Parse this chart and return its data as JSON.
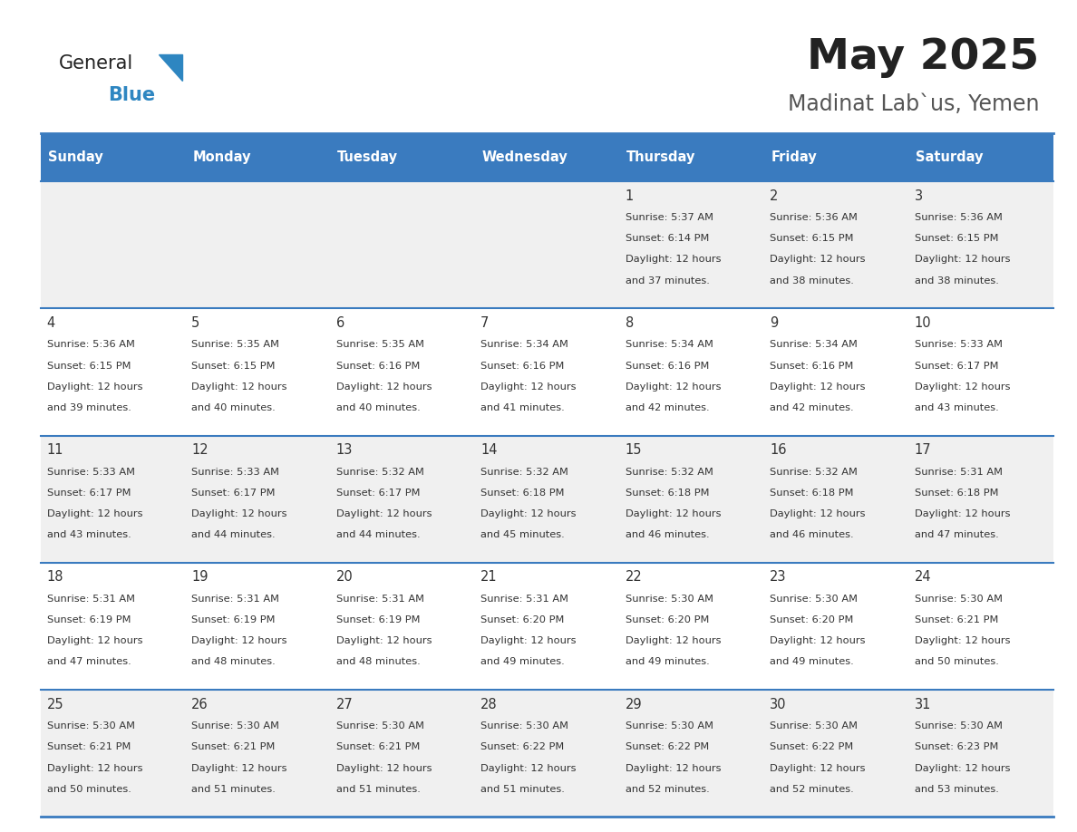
{
  "title": "May 2025",
  "subtitle": "Madinat Lab`us, Yemen",
  "days_of_week": [
    "Sunday",
    "Monday",
    "Tuesday",
    "Wednesday",
    "Thursday",
    "Friday",
    "Saturday"
  ],
  "header_bg": "#3a7bbf",
  "header_text": "#ffffff",
  "row_bg_odd": "#f0f0f0",
  "row_bg_even": "#ffffff",
  "separator_color": "#3a7bbf",
  "day_number_color": "#333333",
  "text_color": "#333333",
  "title_color": "#222222",
  "subtitle_color": "#555555",
  "calendar_data": [
    [
      {
        "day": "",
        "sunrise": "",
        "sunset": "",
        "daylight": ""
      },
      {
        "day": "",
        "sunrise": "",
        "sunset": "",
        "daylight": ""
      },
      {
        "day": "",
        "sunrise": "",
        "sunset": "",
        "daylight": ""
      },
      {
        "day": "",
        "sunrise": "",
        "sunset": "",
        "daylight": ""
      },
      {
        "day": "1",
        "sunrise": "5:37 AM",
        "sunset": "6:14 PM",
        "daylight": "12 hours and 37 minutes."
      },
      {
        "day": "2",
        "sunrise": "5:36 AM",
        "sunset": "6:15 PM",
        "daylight": "12 hours and 38 minutes."
      },
      {
        "day": "3",
        "sunrise": "5:36 AM",
        "sunset": "6:15 PM",
        "daylight": "12 hours and 38 minutes."
      }
    ],
    [
      {
        "day": "4",
        "sunrise": "5:36 AM",
        "sunset": "6:15 PM",
        "daylight": "12 hours and 39 minutes."
      },
      {
        "day": "5",
        "sunrise": "5:35 AM",
        "sunset": "6:15 PM",
        "daylight": "12 hours and 40 minutes."
      },
      {
        "day": "6",
        "sunrise": "5:35 AM",
        "sunset": "6:16 PM",
        "daylight": "12 hours and 40 minutes."
      },
      {
        "day": "7",
        "sunrise": "5:34 AM",
        "sunset": "6:16 PM",
        "daylight": "12 hours and 41 minutes."
      },
      {
        "day": "8",
        "sunrise": "5:34 AM",
        "sunset": "6:16 PM",
        "daylight": "12 hours and 42 minutes."
      },
      {
        "day": "9",
        "sunrise": "5:34 AM",
        "sunset": "6:16 PM",
        "daylight": "12 hours and 42 minutes."
      },
      {
        "day": "10",
        "sunrise": "5:33 AM",
        "sunset": "6:17 PM",
        "daylight": "12 hours and 43 minutes."
      }
    ],
    [
      {
        "day": "11",
        "sunrise": "5:33 AM",
        "sunset": "6:17 PM",
        "daylight": "12 hours and 43 minutes."
      },
      {
        "day": "12",
        "sunrise": "5:33 AM",
        "sunset": "6:17 PM",
        "daylight": "12 hours and 44 minutes."
      },
      {
        "day": "13",
        "sunrise": "5:32 AM",
        "sunset": "6:17 PM",
        "daylight": "12 hours and 44 minutes."
      },
      {
        "day": "14",
        "sunrise": "5:32 AM",
        "sunset": "6:18 PM",
        "daylight": "12 hours and 45 minutes."
      },
      {
        "day": "15",
        "sunrise": "5:32 AM",
        "sunset": "6:18 PM",
        "daylight": "12 hours and 46 minutes."
      },
      {
        "day": "16",
        "sunrise": "5:32 AM",
        "sunset": "6:18 PM",
        "daylight": "12 hours and 46 minutes."
      },
      {
        "day": "17",
        "sunrise": "5:31 AM",
        "sunset": "6:18 PM",
        "daylight": "12 hours and 47 minutes."
      }
    ],
    [
      {
        "day": "18",
        "sunrise": "5:31 AM",
        "sunset": "6:19 PM",
        "daylight": "12 hours and 47 minutes."
      },
      {
        "day": "19",
        "sunrise": "5:31 AM",
        "sunset": "6:19 PM",
        "daylight": "12 hours and 48 minutes."
      },
      {
        "day": "20",
        "sunrise": "5:31 AM",
        "sunset": "6:19 PM",
        "daylight": "12 hours and 48 minutes."
      },
      {
        "day": "21",
        "sunrise": "5:31 AM",
        "sunset": "6:20 PM",
        "daylight": "12 hours and 49 minutes."
      },
      {
        "day": "22",
        "sunrise": "5:30 AM",
        "sunset": "6:20 PM",
        "daylight": "12 hours and 49 minutes."
      },
      {
        "day": "23",
        "sunrise": "5:30 AM",
        "sunset": "6:20 PM",
        "daylight": "12 hours and 49 minutes."
      },
      {
        "day": "24",
        "sunrise": "5:30 AM",
        "sunset": "6:21 PM",
        "daylight": "12 hours and 50 minutes."
      }
    ],
    [
      {
        "day": "25",
        "sunrise": "5:30 AM",
        "sunset": "6:21 PM",
        "daylight": "12 hours and 50 minutes."
      },
      {
        "day": "26",
        "sunrise": "5:30 AM",
        "sunset": "6:21 PM",
        "daylight": "12 hours and 51 minutes."
      },
      {
        "day": "27",
        "sunrise": "5:30 AM",
        "sunset": "6:21 PM",
        "daylight": "12 hours and 51 minutes."
      },
      {
        "day": "28",
        "sunrise": "5:30 AM",
        "sunset": "6:22 PM",
        "daylight": "12 hours and 51 minutes."
      },
      {
        "day": "29",
        "sunrise": "5:30 AM",
        "sunset": "6:22 PM",
        "daylight": "12 hours and 52 minutes."
      },
      {
        "day": "30",
        "sunrise": "5:30 AM",
        "sunset": "6:22 PM",
        "daylight": "12 hours and 52 minutes."
      },
      {
        "day": "31",
        "sunrise": "5:30 AM",
        "sunset": "6:23 PM",
        "daylight": "12 hours and 53 minutes."
      }
    ]
  ]
}
